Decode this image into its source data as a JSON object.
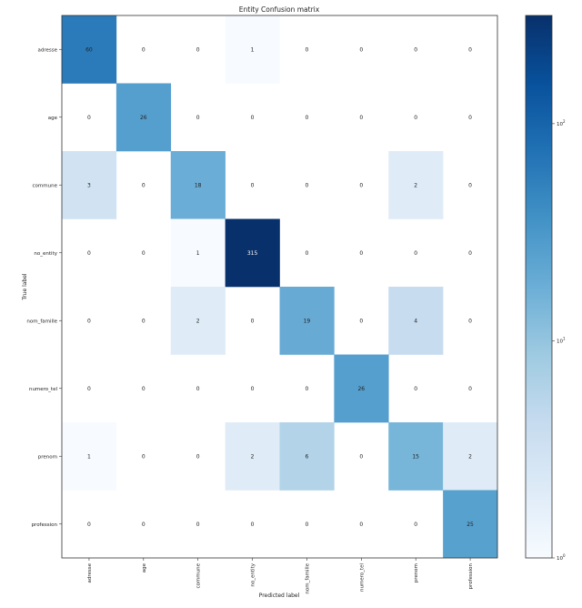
{
  "chart_data": {
    "type": "heatmap",
    "title": "Entity Confusion matrix",
    "xlabel": "Predicted label",
    "ylabel": "True label",
    "labels": [
      "adresse",
      "age",
      "commune",
      "no_entity",
      "nom_famille",
      "numero_tel",
      "prenom",
      "profession"
    ],
    "matrix": [
      [
        60,
        0,
        0,
        1,
        0,
        0,
        0,
        0
      ],
      [
        0,
        26,
        0,
        0,
        0,
        0,
        0,
        0
      ],
      [
        3,
        0,
        18,
        0,
        0,
        0,
        2,
        0
      ],
      [
        0,
        0,
        1,
        315,
        0,
        0,
        0,
        0
      ],
      [
        0,
        0,
        2,
        0,
        19,
        0,
        4,
        0
      ],
      [
        0,
        0,
        0,
        0,
        0,
        26,
        0,
        0
      ],
      [
        1,
        0,
        0,
        2,
        6,
        0,
        15,
        2
      ],
      [
        0,
        0,
        0,
        0,
        0,
        0,
        0,
        25
      ]
    ],
    "colorscale": "Blues",
    "color_scale_type": "log",
    "colorbar_range": [
      1,
      315
    ],
    "colorbar_ticks": [
      {
        "value": 1,
        "base": "10",
        "exp": "0"
      },
      {
        "value": 10,
        "base": "10",
        "exp": "1"
      },
      {
        "value": 100,
        "base": "10",
        "exp": "2"
      }
    ],
    "zero_cells_color": "#ffffff",
    "grid": false
  }
}
